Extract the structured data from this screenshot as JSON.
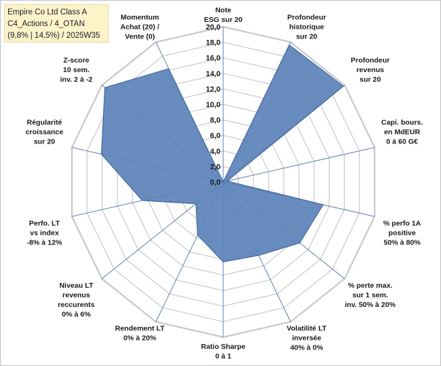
{
  "header": {
    "line1": "Empire Co Ltd Class A",
    "line2": "C4_Actions / 4_OTAN",
    "line3": "(9,8% | 14,5%) / 2025W35"
  },
  "chart_data": {
    "type": "radar",
    "rlim": [
      0,
      20
    ],
    "tick_values": [
      0,
      2,
      4,
      6,
      8,
      10,
      12,
      14,
      16,
      18,
      20
    ],
    "tick_labels": [
      "0,0",
      "2,0",
      "4,0",
      "6,0",
      "8,0",
      "10,0",
      "12,0",
      "14,0",
      "16,0",
      "18,0",
      "20,0"
    ],
    "grid": true,
    "colors": {
      "fill": "#5b82b8",
      "line": "#3e67a6",
      "grid": "#c8c8c8",
      "axis": "#4472c4"
    },
    "categories": [
      [
        "Note",
        "ESG sur 20"
      ],
      [
        "Profondeur",
        "historique",
        "sur 20"
      ],
      [
        "Profondeur",
        "revenus",
        "sur 20"
      ],
      [
        "Capi. bours.",
        "en MdEUR",
        "0 à 60 G€"
      ],
      [
        "% perfo 1A",
        "positive",
        "50% à 80%"
      ],
      [
        "% perte max.",
        "sur 1 sem.",
        "inv. 50% à 20%"
      ],
      [
        "Volatilité LT",
        "inversée",
        "40% à 0%"
      ],
      [
        "Ratio Sharpe",
        "0 à 1"
      ],
      [
        "Rendement LT",
        "0% à 20%"
      ],
      [
        "Niveau LT",
        "revenus",
        "reccurents",
        "0% à 6%"
      ],
      [
        "Perfo. LT",
        "vs index",
        "-8% à 12%"
      ],
      [
        "Régularité",
        "croissance",
        "sur 20"
      ],
      [
        "Z-score",
        "10 sem.",
        "inv. 2 à -2"
      ],
      [
        "Momentum",
        "Achat (20) /",
        "Vente (0)"
      ]
    ],
    "series": [
      {
        "values": [
          0,
          19.6,
          19.8,
          0.5,
          13.2,
          12.6,
          10.5,
          10.3,
          7.6,
          4.5,
          10.7,
          16.1,
          19.5,
          16.2
        ]
      }
    ]
  }
}
